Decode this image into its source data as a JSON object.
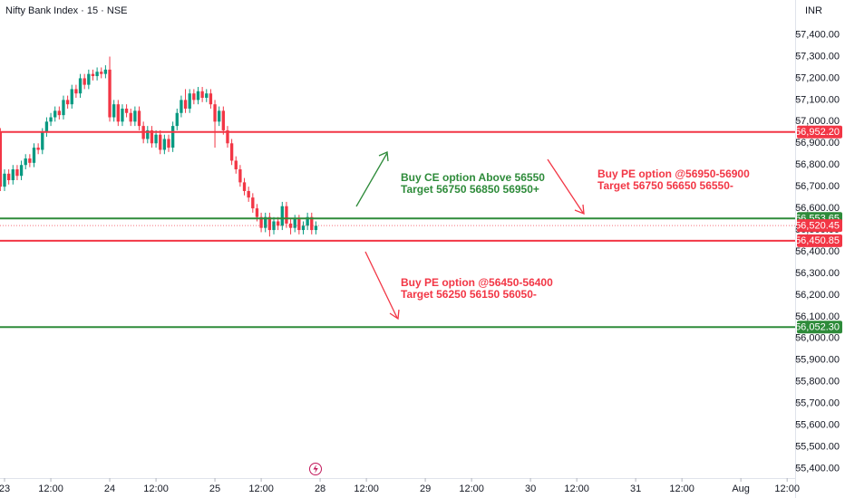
{
  "chart_data": {
    "type": "candlestick",
    "title": "Nifty Bank Index · 15 · NSE",
    "currency": "INR",
    "up_color": "#089981",
    "down_color": "#f23645",
    "open": [
      56950,
      56700,
      56760,
      56730,
      56780,
      56750,
      56800,
      56830,
      56810,
      56880,
      56870,
      56950,
      57000,
      57020,
      57050,
      57030,
      57100,
      57080,
      57150,
      57130,
      57200,
      57170,
      57220,
      57210,
      57230,
      57220,
      57240,
      57020,
      57080,
      57000,
      57060,
      57040,
      57000,
      57050,
      56980,
      56920,
      56960,
      56900,
      56940,
      56870,
      56920,
      56880,
      56980,
      57040,
      57100,
      57060,
      57130,
      57100,
      57140,
      57110,
      57130,
      57080,
      57000,
      57050,
      56960,
      56900,
      56820,
      56780,
      56720,
      56680,
      56650,
      56600,
      56560,
      56510,
      56560,
      56500,
      56540,
      56520,
      56610,
      56530,
      56510,
      56550,
      56500,
      56520,
      56560,
      56500
    ],
    "high": [
      56970,
      56780,
      56780,
      56800,
      56800,
      56820,
      56850,
      56850,
      56900,
      56900,
      56970,
      57020,
      57040,
      57070,
      57070,
      57120,
      57120,
      57170,
      57170,
      57220,
      57220,
      57240,
      57240,
      57250,
      57250,
      57260,
      57300,
      57100,
      57100,
      57080,
      57080,
      57060,
      57070,
      57070,
      57000,
      56980,
      56980,
      56960,
      56960,
      56940,
      56940,
      57000,
      57060,
      57120,
      57150,
      57150,
      57150,
      57160,
      57160,
      57150,
      57150,
      57100,
      57070,
      57070,
      56980,
      56920,
      56840,
      56800,
      56740,
      56700,
      56670,
      56620,
      56580,
      56580,
      56580,
      56560,
      56560,
      56630,
      56630,
      56550,
      56570,
      56570,
      56540,
      56580,
      56580,
      56540
    ],
    "low": [
      56680,
      56680,
      56710,
      56710,
      56730,
      56730,
      56780,
      56790,
      56790,
      56850,
      56850,
      56930,
      56980,
      57000,
      57010,
      57010,
      57060,
      57060,
      57110,
      57110,
      57150,
      57150,
      57190,
      57190,
      57200,
      57200,
      57000,
      57000,
      56980,
      56980,
      57020,
      56980,
      56980,
      56960,
      56900,
      56900,
      56880,
      56880,
      56850,
      56850,
      56860,
      56860,
      56960,
      57020,
      57040,
      57040,
      57080,
      57080,
      57090,
      57090,
      57060,
      56880,
      56980,
      56940,
      56880,
      56800,
      56760,
      56700,
      56660,
      56630,
      56580,
      56540,
      56490,
      56490,
      56470,
      56480,
      56500,
      56500,
      56510,
      56480,
      56490,
      56480,
      56480,
      56500,
      56480,
      56480
    ],
    "close": [
      56700,
      56760,
      56730,
      56780,
      56750,
      56800,
      56830,
      56810,
      56880,
      56870,
      56950,
      57000,
      57020,
      57050,
      57030,
      57100,
      57080,
      57150,
      57130,
      57200,
      57170,
      57220,
      57210,
      57230,
      57220,
      57240,
      57020,
      57080,
      57000,
      57060,
      57040,
      57000,
      57050,
      56980,
      56920,
      56960,
      56900,
      56940,
      56870,
      56920,
      56880,
      56980,
      57040,
      57100,
      57060,
      57130,
      57100,
      57140,
      57110,
      57130,
      57080,
      57000,
      57050,
      56960,
      56900,
      56820,
      56780,
      56720,
      56680,
      56650,
      56600,
      56560,
      56510,
      56560,
      56500,
      56540,
      56520,
      56610,
      56530,
      56510,
      56550,
      56500,
      56520,
      56560,
      56500,
      56520
    ],
    "xlim": [
      -0.08,
      188.9
    ],
    "xticks": [
      {
        "value": 1,
        "label": "23"
      },
      {
        "value": 12,
        "label": "12:00"
      },
      {
        "value": 26,
        "label": "24"
      },
      {
        "value": 37,
        "label": "12:00"
      },
      {
        "value": 51,
        "label": "25"
      },
      {
        "value": 62,
        "label": "12:00"
      },
      {
        "value": 76,
        "label": "28"
      },
      {
        "value": 87,
        "label": "12:00"
      },
      {
        "value": 101,
        "label": "29"
      },
      {
        "value": 112,
        "label": "12:00"
      },
      {
        "value": 126,
        "label": "30"
      },
      {
        "value": 137,
        "label": "12:00"
      },
      {
        "value": 151,
        "label": "31"
      },
      {
        "value": 162,
        "label": "12:00"
      },
      {
        "value": 176,
        "label": "Aug"
      },
      {
        "value": 187,
        "label": "12:00"
      }
    ],
    "ylim": [
      55356,
      57561
    ],
    "yticks": [
      {
        "value": 55400,
        "label": "55,400.00"
      },
      {
        "value": 55500,
        "label": "55,500.00"
      },
      {
        "value": 55600,
        "label": "55,600.00"
      },
      {
        "value": 55700,
        "label": "55,700.00"
      },
      {
        "value": 55800,
        "label": "55,800.00"
      },
      {
        "value": 55900,
        "label": "55,900.00"
      },
      {
        "value": 56000,
        "label": "56,000.00"
      },
      {
        "value": 56100,
        "label": "56,100.00"
      },
      {
        "value": 56200,
        "label": "56,200.00"
      },
      {
        "value": 56300,
        "label": "56,300.00"
      },
      {
        "value": 56400,
        "label": "56,400.00"
      },
      {
        "value": 56500,
        "label": "56,500.00"
      },
      {
        "value": 56600,
        "label": "56,600.00"
      },
      {
        "value": 56700,
        "label": "56,700.00"
      },
      {
        "value": 56800,
        "label": "56,800.00"
      },
      {
        "value": 56900,
        "label": "56,900.00"
      },
      {
        "value": 57000,
        "label": "57,000.00"
      },
      {
        "value": 57100,
        "label": "57,100.00"
      },
      {
        "value": 57200,
        "label": "57,200.00"
      },
      {
        "value": 57300,
        "label": "57,300.00"
      },
      {
        "value": 57400,
        "label": "57,400.00"
      }
    ],
    "levels": [
      {
        "value": 56952.2,
        "label": "56,952.20",
        "color": "#f23645"
      },
      {
        "value": 56553.65,
        "label": "56,553.65",
        "color": "#2e8b3a"
      },
      {
        "value": 56450.85,
        "label": "56,450.85",
        "color": "#f23645"
      },
      {
        "value": 56052.3,
        "label": "56,052.30",
        "color": "#2e8b3a"
      }
    ],
    "last_price": {
      "value": 56520.45,
      "label": "56,520.45",
      "color": "#f23645"
    },
    "annotations": [
      {
        "lines": [
          "Buy CE option Above 56550",
          "Target 56750 56850 56950+"
        ],
        "color": "#2e8b3a"
      },
      {
        "lines": [
          "Buy PE option @56950-56900",
          "Target 56750 56650 56550-"
        ],
        "color": "#f23645"
      },
      {
        "lines": [
          "Buy PE option @56450-56400",
          "Target 56250 56150 56050-"
        ],
        "color": "#f23645"
      }
    ]
  }
}
